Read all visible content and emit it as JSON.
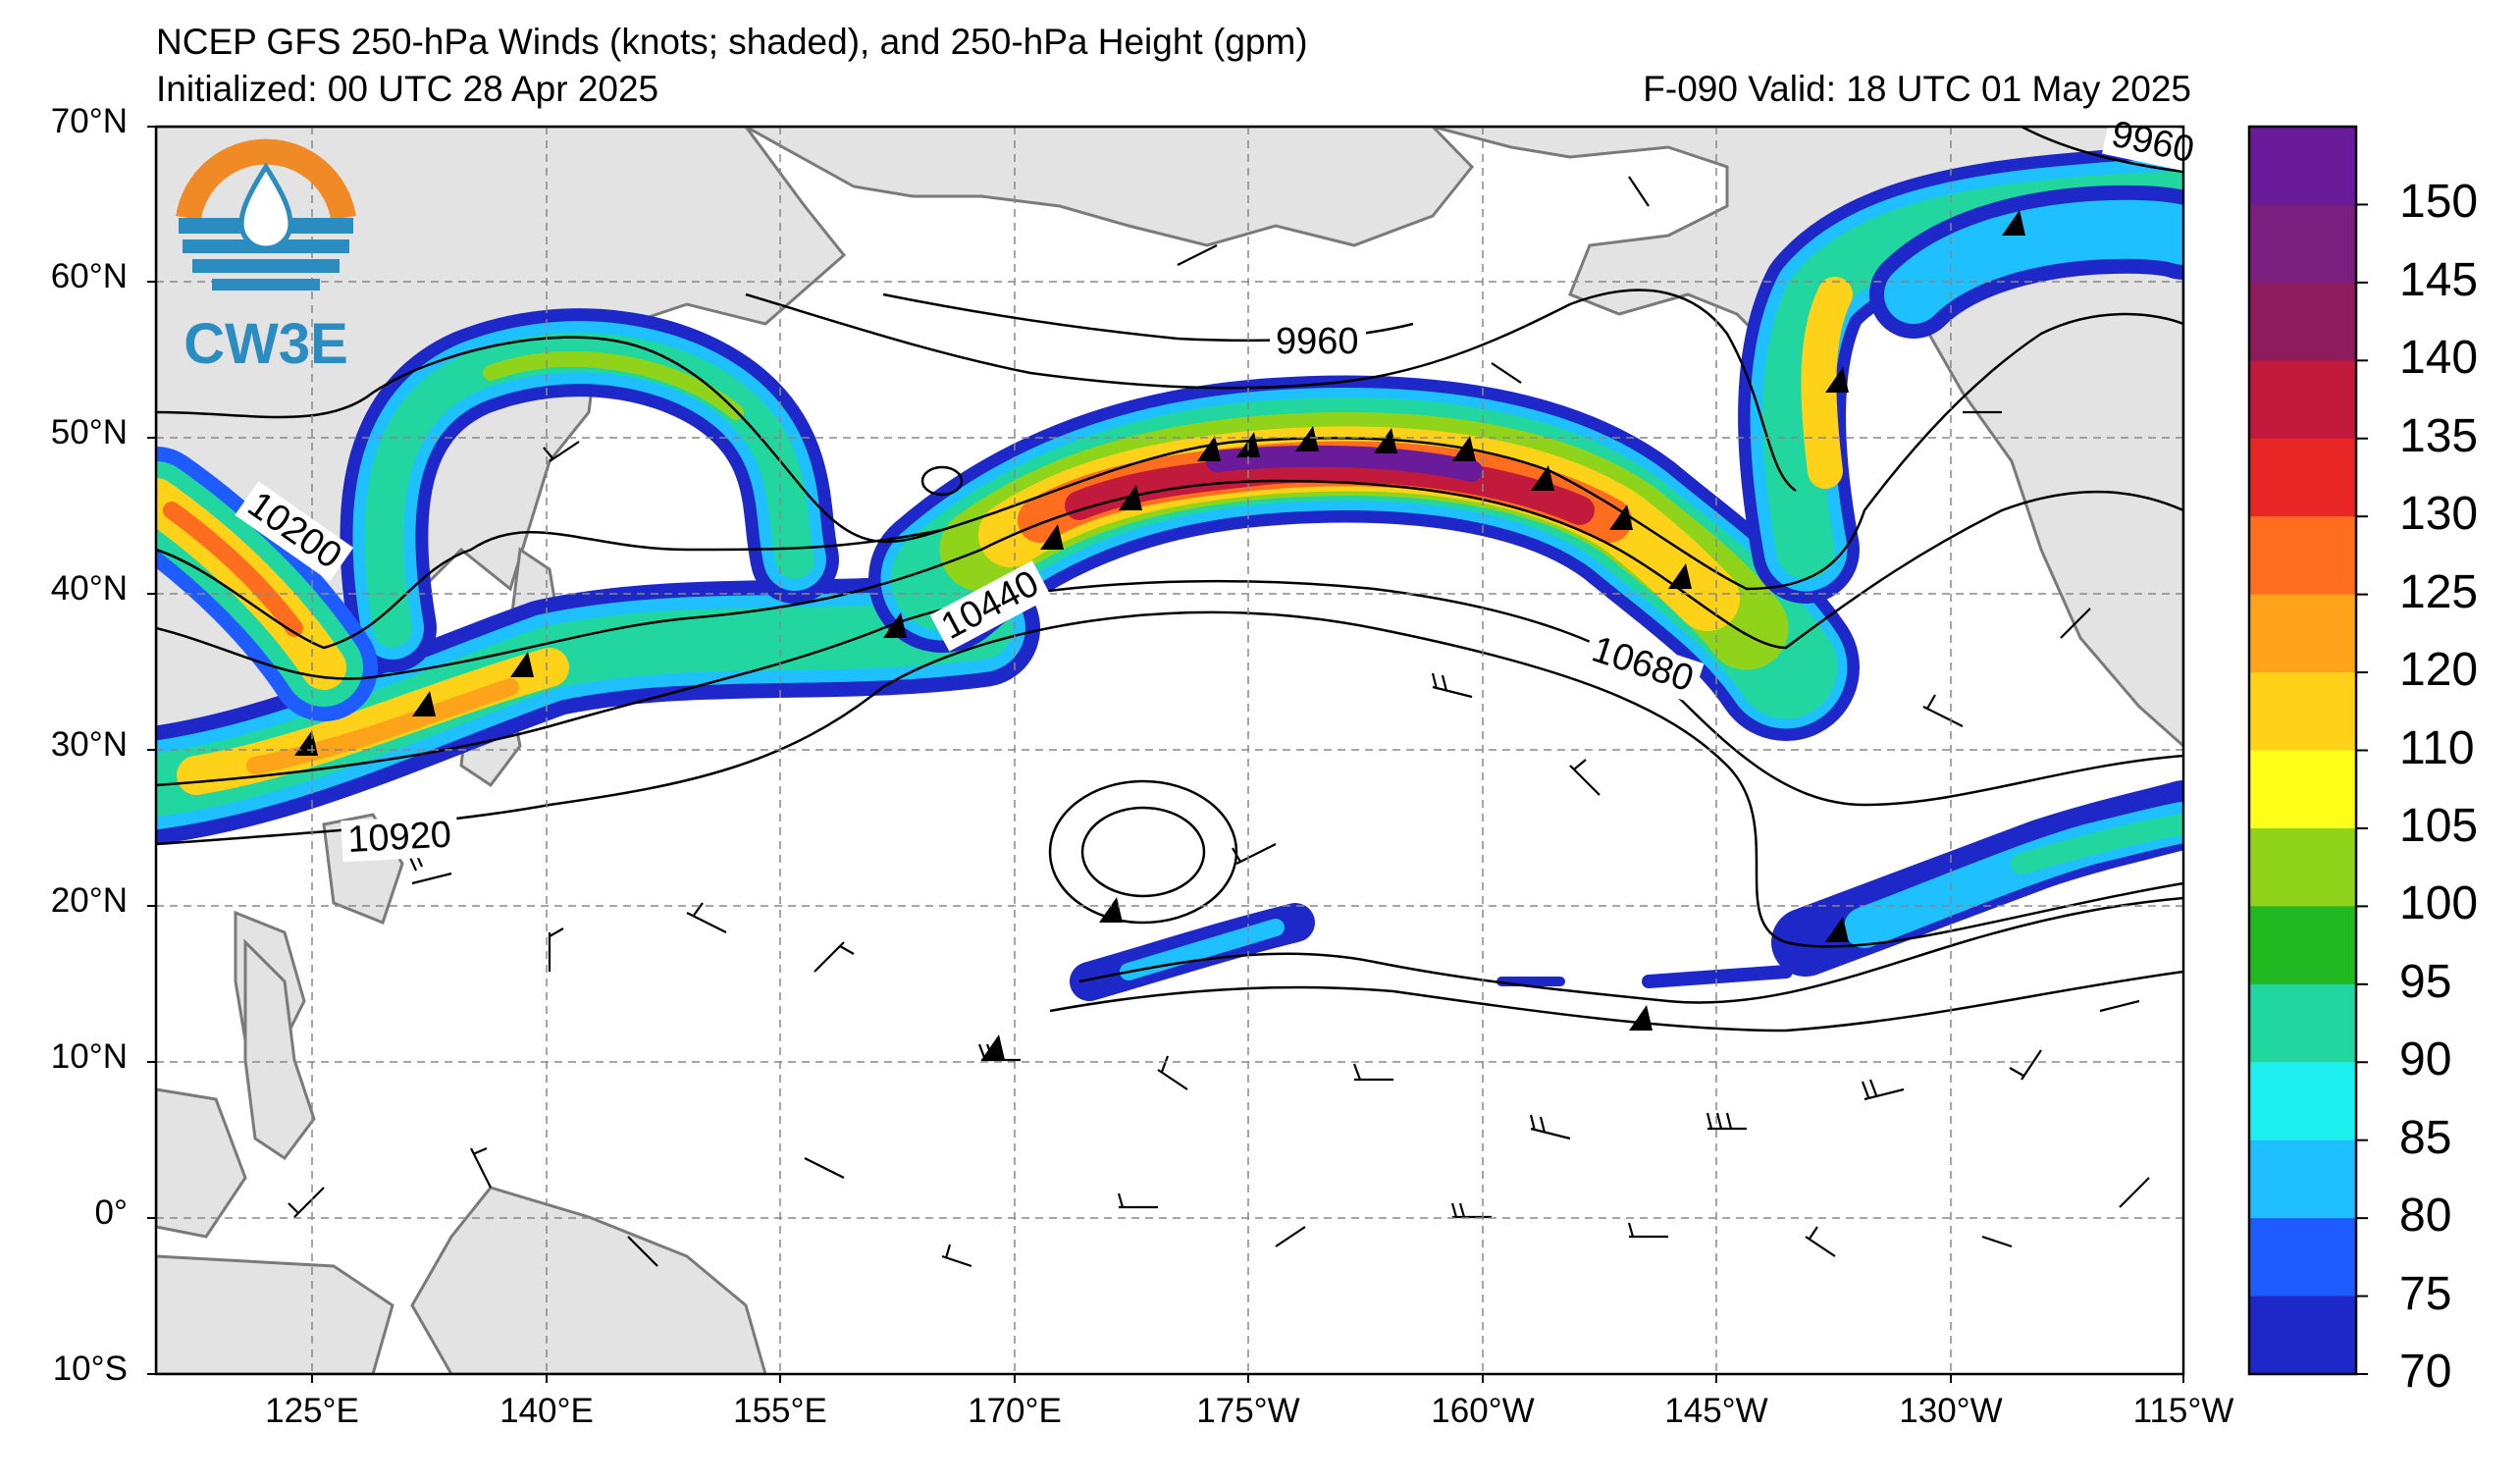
{
  "header": {
    "title": "NCEP GFS 250-hPa Winds (knots; shaded), and 250-hPa Height (gpm)",
    "initialized": "Initialized: 00 UTC 28 Apr 2025",
    "valid": "F-090  Valid: 18 UTC 01 May 2025"
  },
  "logo": {
    "text": "CW3E",
    "colors": {
      "ring": "#f08a24",
      "drop": "#2b8cc0"
    }
  },
  "map": {
    "lat_labels": [
      "70°N",
      "60°N",
      "50°N",
      "40°N",
      "30°N",
      "20°N",
      "10°N",
      "0°",
      "10°S"
    ],
    "lon_labels": [
      "125°E",
      "140°E",
      "155°E",
      "170°E",
      "175°W",
      "160°W",
      "145°W",
      "130°W",
      "115°W"
    ],
    "contour_labels": [
      "9960",
      "9960",
      "10200",
      "10440",
      "10680",
      "10920"
    ],
    "land_color": "#e3e3e3",
    "coast_color": "#7a7a7a"
  },
  "colorbar": {
    "labels": [
      "150",
      "145",
      "140",
      "135",
      "130",
      "125",
      "120",
      "110",
      "105",
      "100",
      "95",
      "90",
      "85",
      "80",
      "75",
      "70"
    ],
    "colors": [
      "#6a1b9a",
      "#7b1f7e",
      "#8e1b5c",
      "#c21a3c",
      "#e82626",
      "#ff6d1f",
      "#ffa31a",
      "#ffd21a",
      "#ffff1a",
      "#8fd41a",
      "#22b822",
      "#22d6a0",
      "#1ef0f0",
      "#1ec0ff",
      "#1e5cff",
      "#1e28c8"
    ]
  }
}
